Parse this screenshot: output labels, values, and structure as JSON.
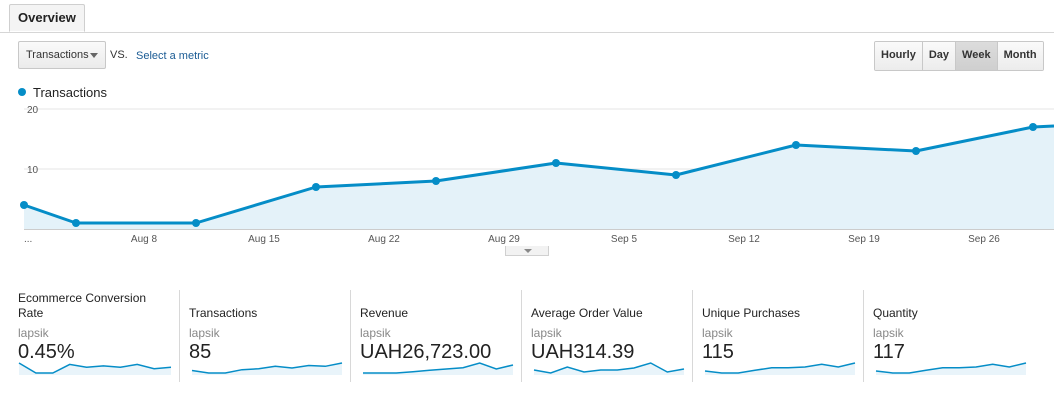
{
  "tabs": {
    "overview": "Overview"
  },
  "controls": {
    "metric_select": "Transactions",
    "vs": "VS.",
    "select_metric": "Select a metric",
    "intervals": [
      {
        "label": "Hourly",
        "active": false
      },
      {
        "label": "Day",
        "active": false
      },
      {
        "label": "Week",
        "active": true
      },
      {
        "label": "Month",
        "active": false
      }
    ]
  },
  "colors": {
    "series": "#058dc7",
    "area_fill": "#e4f2f9",
    "sparkline": "#058dc7"
  },
  "chart_data": {
    "type": "area",
    "series": [
      {
        "name": "Transactions",
        "values": [
          4,
          1,
          1,
          7,
          8,
          11,
          9,
          14,
          13,
          17
        ]
      }
    ],
    "x_points": [
      "...",
      "Aug 4",
      "Aug 11",
      "Aug 18",
      "Aug 25",
      "Sep 1",
      "Sep 8",
      "Sep 15",
      "Sep 22",
      "Sep 29"
    ],
    "x_tick_labels": [
      "...",
      "Aug 8",
      "Aug 15",
      "Aug 22",
      "Aug 29",
      "Sep 5",
      "Sep 12",
      "Sep 19",
      "Sep 26"
    ],
    "y_tick_labels": [
      "20",
      "10"
    ],
    "ylim": [
      0,
      20
    ],
    "grid": true,
    "legend": "top-left"
  },
  "metrics": [
    {
      "title": "Ecommerce Conversion Rate",
      "title_line1": "Ecommerce Conversion",
      "title_line2": "Rate",
      "sub": "lapsik",
      "value": "0.45%",
      "spark": [
        8,
        1,
        1,
        7,
        5,
        6,
        5,
        7,
        4,
        5
      ]
    },
    {
      "title": "Transactions",
      "sub": "lapsik",
      "value": "85",
      "spark": [
        4,
        1,
        1,
        5,
        6,
        9,
        7,
        10,
        9,
        13
      ]
    },
    {
      "title": "Revenue",
      "sub": "lapsik",
      "value": "UAH26,723.00",
      "spark": [
        1,
        1,
        1,
        3,
        5,
        7,
        9,
        16,
        7,
        13
      ]
    },
    {
      "title": "Average Order Value",
      "sub": "lapsik",
      "value": "UAH314.39",
      "spark": [
        6,
        3,
        9,
        4,
        6,
        6,
        8,
        13,
        4,
        7
      ]
    },
    {
      "title": "Unique Purchases",
      "sub": "lapsik",
      "value": "115",
      "spark": [
        4,
        1,
        1,
        5,
        9,
        9,
        10,
        14,
        10,
        16
      ]
    },
    {
      "title": "Quantity",
      "sub": "lapsik",
      "value": "117",
      "spark": [
        4,
        1,
        1,
        5,
        9,
        9,
        10,
        14,
        10,
        16
      ]
    }
  ]
}
